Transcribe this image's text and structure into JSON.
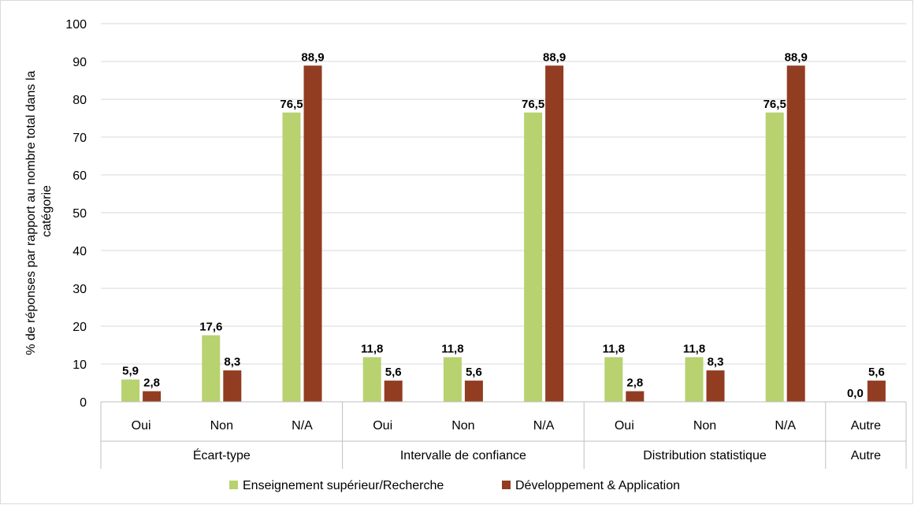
{
  "chart_data": {
    "type": "bar",
    "ylabel_lines": [
      "% de réponses par rapport au nombre total dans la",
      "catégorie"
    ],
    "ylim": [
      0,
      100
    ],
    "yticks": [
      0,
      10,
      20,
      30,
      40,
      50,
      60,
      70,
      80,
      90,
      100
    ],
    "grid": true,
    "legend_position": "bottom",
    "groups": [
      {
        "name": "Écart-type",
        "categories": [
          "Oui",
          "Non",
          "N/A"
        ]
      },
      {
        "name": "Intervalle de confiance",
        "categories": [
          "Oui",
          "Non",
          "N/A"
        ]
      },
      {
        "name": "Distribution statistique",
        "categories": [
          "Oui",
          "Non",
          "N/A"
        ]
      },
      {
        "name": "Autre",
        "categories": [
          "Autre"
        ]
      }
    ],
    "series": [
      {
        "name": "Enseignement supérieur/Recherche",
        "color": "#b7d26f",
        "values": [
          5.9,
          17.6,
          76.5,
          11.8,
          11.8,
          76.5,
          11.8,
          11.8,
          76.5,
          0.0
        ],
        "labels": [
          "5,9",
          "17,6",
          "76,5",
          "11,8",
          "11,8",
          "76,5",
          "11,8",
          "11,8",
          "76,5",
          "0,0"
        ]
      },
      {
        "name": "Développement & Application",
        "color": "#923c22",
        "values": [
          2.8,
          8.3,
          88.9,
          5.6,
          5.6,
          88.9,
          2.8,
          8.3,
          88.9,
          5.6
        ],
        "labels": [
          "2,8",
          "8,3",
          "88,9",
          "5,6",
          "5,6",
          "88,9",
          "2,8",
          "8,3",
          "88,9",
          "5,6"
        ]
      }
    ]
  }
}
